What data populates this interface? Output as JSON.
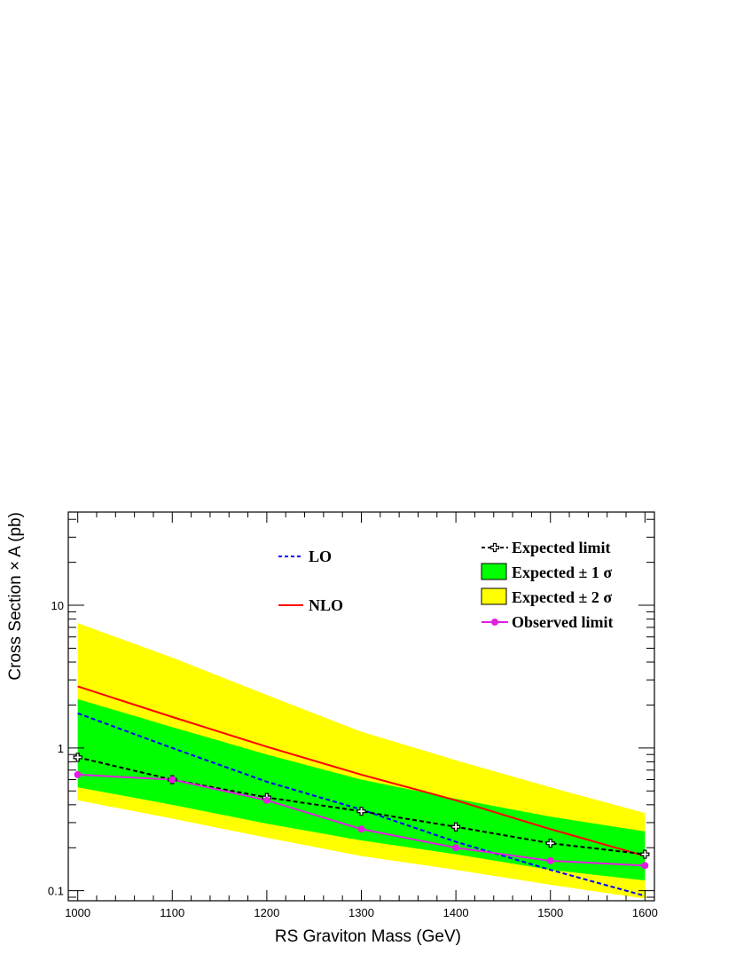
{
  "chart_data": {
    "type": "line",
    "xlabel": "RS Graviton Mass (GeV)",
    "ylabel": "Cross Section × A (pb)",
    "xlim": [
      990,
      1610
    ],
    "ylim": [
      0.085,
      45
    ],
    "yscale": "log",
    "x_ticks": [
      1000,
      1100,
      1200,
      1300,
      1400,
      1500,
      1600
    ],
    "x_tick_labels": [
      "1000",
      "1100",
      "1200",
      "1300",
      "1400",
      "1500",
      "1600"
    ],
    "y_ticks": [
      0.1,
      1,
      10
    ],
    "y_tick_labels": [
      "0.1",
      "1",
      "10"
    ],
    "grid": false,
    "x": [
      1000,
      1100,
      1200,
      1300,
      1400,
      1500,
      1600
    ],
    "bands": [
      {
        "name": "Expected ± 2 σ",
        "color": "#ffff00",
        "lower": [
          0.43,
          0.32,
          0.235,
          0.175,
          0.14,
          0.11,
          0.088
        ],
        "upper": [
          7.5,
          4.3,
          2.35,
          1.3,
          0.82,
          0.53,
          0.35
        ]
      },
      {
        "name": "Expected ± 1 σ",
        "color": "#00ff00",
        "lower": [
          0.53,
          0.4,
          0.295,
          0.225,
          0.18,
          0.14,
          0.118
        ],
        "upper": [
          2.2,
          1.4,
          0.9,
          0.6,
          0.44,
          0.33,
          0.26
        ]
      }
    ],
    "series": [
      {
        "name": "LO",
        "color": "#0000ff",
        "style": "dashed",
        "values": [
          1.75,
          1.0,
          0.58,
          0.37,
          0.22,
          0.14,
          0.092
        ]
      },
      {
        "name": "NLO",
        "color": "#ff0000",
        "style": "solid",
        "values": [
          2.7,
          1.65,
          1.02,
          0.65,
          0.43,
          0.27,
          0.175
        ]
      },
      {
        "name": "Expected limit",
        "color": "#000000",
        "style": "dashed",
        "marker": "open-cross",
        "values": [
          0.86,
          0.6,
          0.45,
          0.36,
          0.28,
          0.215,
          0.18
        ]
      },
      {
        "name": "Observed limit",
        "color": "#e020e0",
        "style": "solid",
        "marker": "dot",
        "values": [
          0.65,
          0.6,
          0.43,
          0.27,
          0.2,
          0.162,
          0.15
        ]
      }
    ],
    "legend_right": [
      "Expected limit",
      "Expected ± 1 σ",
      "Expected ± 2 σ",
      "Observed limit"
    ],
    "legend_left": [
      "LO",
      "NLO"
    ],
    "legend_placement": "top"
  }
}
